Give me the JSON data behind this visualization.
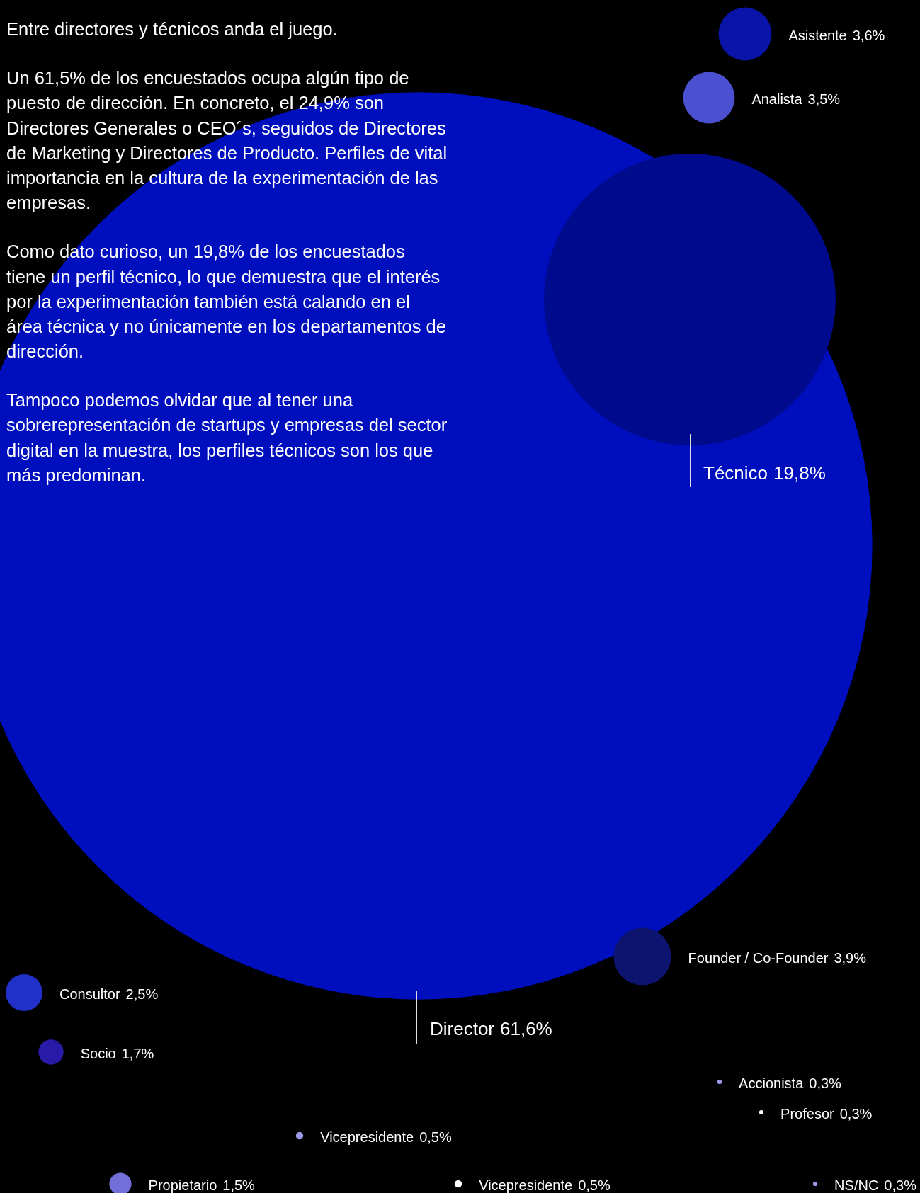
{
  "chart_data": {
    "type": "other",
    "title": "Entre directores y técnicos anda el juego.",
    "annotations": [
      "Un 61,5% de los encuestados ocupa algún tipo de puesto de dirección. En concreto, el 24,9% son Directores Generales o CEO´s, seguidos de Directores de Marketing y Directores de Producto. Perfiles de vital importancia en la cultura de la experimentación de las empresas.",
      "Como dato curioso, un 19,8% de los encuestados tiene un perfil técnico, lo que demuestra que el interés por la experimentación también está calando en el área técnica y no únicamente en los departamentos de dirección.",
      "Tampoco podemos olvidar que al tener una sobrerepresentación de startups y empresas del sector digital en la muestra, los perfiles técnicos son los que más predominan."
    ],
    "categories": [
      "Director",
      "Técnico",
      "Asistente",
      "Analista",
      "Founder / Co-Founder",
      "Consultor",
      "Socio",
      "Accionista",
      "Profesor",
      "Vicepresidente",
      "Propietario",
      "Vicepresidente",
      "NS/NC"
    ],
    "values": [
      61.6,
      19.8,
      3.6,
      3.5,
      3.9,
      2.5,
      1.7,
      0.3,
      0.3,
      0.5,
      1.5,
      0.5,
      0.3
    ],
    "value_labels": [
      "61,6%",
      "19,8%",
      "3,6%",
      "3,5%",
      "3,9%",
      "2,5%",
      "1,7%",
      "0,3%",
      "0,3%",
      "0,5%",
      "1,5%",
      "0,5%",
      "0,3%"
    ],
    "colors": [
      "#000fbe",
      "#000a8c",
      "#0a14a8",
      "#4a50d0",
      "#0c1470",
      "#2030c8",
      "#2a1aa8",
      "#9a9ae8",
      "#ffffff",
      "#9a9ae8",
      "#7070d8",
      "#ffffff",
      "#9a9ae8"
    ]
  }
}
